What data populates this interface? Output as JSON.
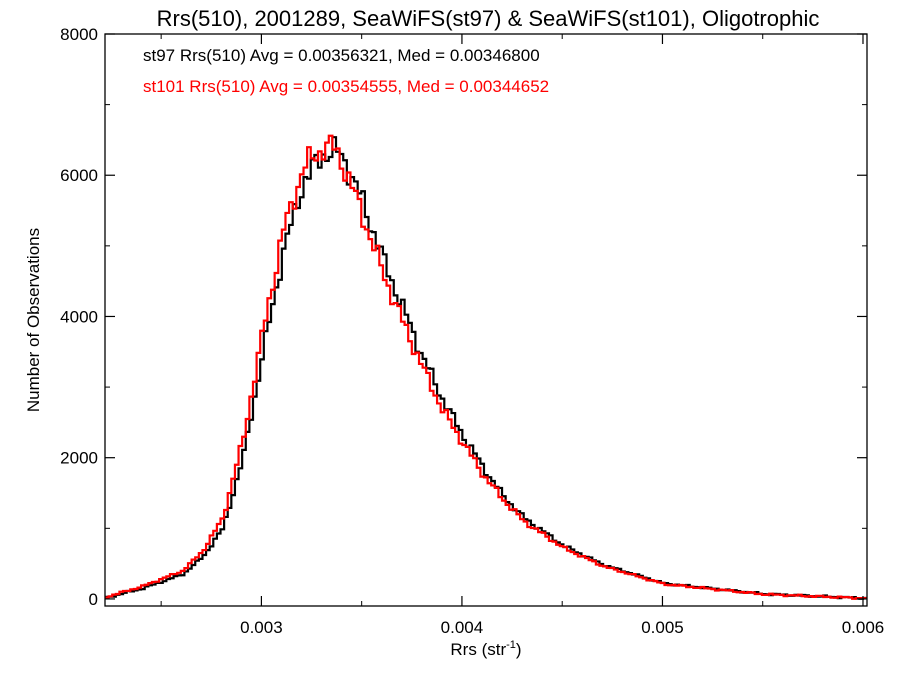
{
  "chart_data": {
    "type": "line",
    "title": "Rrs(510), 2001289, SeaWiFS(st97) & SeaWiFS(st101), Oligotrophic",
    "xlabel": "Rrs (str",
    "xlabel_sup": "-1",
    "xlabel_close": ")",
    "ylabel": "Number of Observations",
    "xlim": [
      0.00222,
      0.00602
    ],
    "ylim": [
      -100,
      8000
    ],
    "xticks": [
      0.003,
      0.004,
      0.005,
      0.006
    ],
    "xtick_labels": [
      "0.003",
      "0.004",
      "0.005",
      "0.006"
    ],
    "yticks": [
      0,
      2000,
      4000,
      6000,
      8000
    ],
    "ytick_labels": [
      "0",
      "2000",
      "4000",
      "6000",
      "8000"
    ],
    "legend": [
      {
        "text": "st97 Rrs(510) Avg = 0.00356321, Med = 0.00346800",
        "color": "#000000"
      },
      {
        "text": "st101 Rrs(510) Avg = 0.00354555, Med = 0.00344652",
        "color": "#ff0000"
      }
    ],
    "series": [
      {
        "color": "#000000",
        "style": "histogram-step",
        "x": [
          0.00222,
          0.0024,
          0.0026,
          0.0027,
          0.0028,
          0.0029,
          0.003,
          0.0031,
          0.0032,
          0.0033,
          0.00335,
          0.0034,
          0.0035,
          0.0036,
          0.0037,
          0.0038,
          0.0039,
          0.004,
          0.0041,
          0.0042,
          0.0043,
          0.0045,
          0.0047,
          0.005,
          0.0055,
          0.006
        ],
        "y": [
          20,
          150,
          350,
          600,
          1000,
          2000,
          3500,
          4900,
          5900,
          6300,
          6350,
          6250,
          5600,
          4800,
          4100,
          3400,
          2800,
          2300,
          1850,
          1450,
          1150,
          750,
          480,
          220,
          70,
          10
        ]
      },
      {
        "color": "#ff0000",
        "style": "histogram-step",
        "x": [
          0.00222,
          0.0024,
          0.0026,
          0.0027,
          0.0028,
          0.0029,
          0.003,
          0.0031,
          0.0032,
          0.0033,
          0.00335,
          0.0034,
          0.0035,
          0.0036,
          0.0037,
          0.0038,
          0.0039,
          0.004,
          0.0041,
          0.0042,
          0.0043,
          0.0045,
          0.0047,
          0.005,
          0.0055,
          0.006
        ],
        "y": [
          30,
          180,
          400,
          680,
          1150,
          2250,
          3800,
          5200,
          6100,
          6400,
          6400,
          6150,
          5400,
          4600,
          3900,
          3250,
          2650,
          2200,
          1750,
          1400,
          1100,
          720,
          460,
          210,
          65,
          10
        ]
      }
    ]
  }
}
